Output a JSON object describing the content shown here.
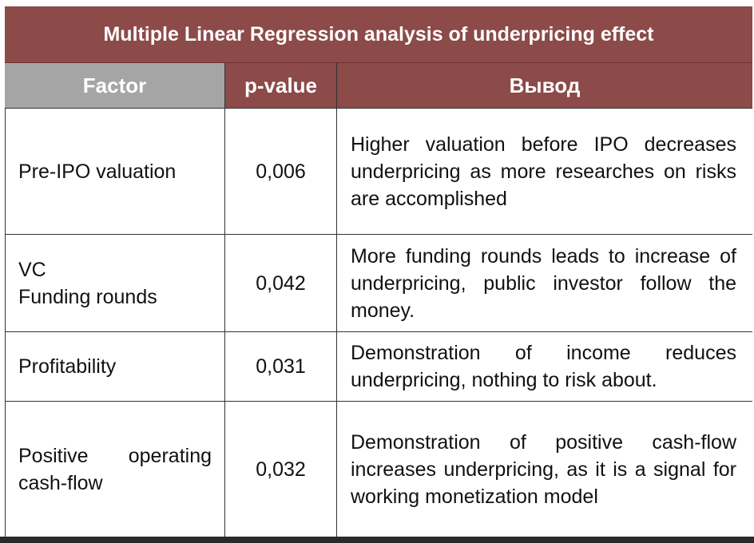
{
  "table": {
    "title": "Multiple Linear Regression analysis of underpricing effect",
    "headers": {
      "factor": "Factor",
      "pvalue": "p-value",
      "vyvod": "Вывод"
    },
    "rows": [
      {
        "factor_lines": [
          "Pre-IPO valuation"
        ],
        "pvalue": "0,006",
        "conclusion": "Higher valuation before IPO decreases underpricing as more researches on risks are accomplished"
      },
      {
        "factor_lines": [
          "VC",
          "Funding rounds"
        ],
        "pvalue": "0,042",
        "conclusion": "More funding rounds leads to increase of underpricing, public investor follow the money."
      },
      {
        "factor_lines": [
          "Profitability"
        ],
        "pvalue": "0,031",
        "conclusion": "Demonstration of income reduces underpricing, nothing to risk about."
      },
      {
        "factor_lines": [
          "Positive operating cash-flow"
        ],
        "pvalue": "0,032",
        "conclusion": "Demonstration of positive cash-flow increases underpricing, as it is a signal for working monetization model"
      }
    ]
  },
  "colors": {
    "title_bg": "#8c4a48",
    "factor_header_bg": "#a5a5a5",
    "header_bg": "#8c4a48"
  }
}
